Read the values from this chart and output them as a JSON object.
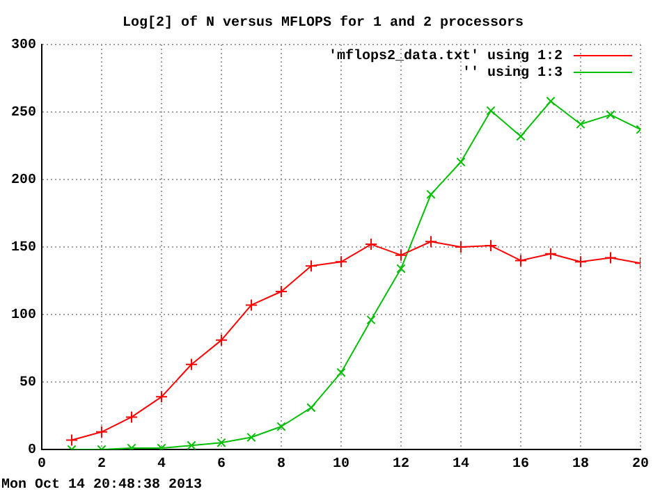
{
  "chart_data": {
    "type": "line",
    "title": "Log[2] of N versus MFLOPS for 1 and 2 processors",
    "x": [
      1,
      2,
      3,
      4,
      5,
      6,
      7,
      8,
      9,
      10,
      11,
      12,
      13,
      14,
      15,
      16,
      17,
      18,
      19,
      20
    ],
    "series": [
      {
        "name": "'mflops2_data.txt' using 1:2",
        "color": "#ff0000",
        "marker": "cross",
        "values": [
          7,
          13,
          24,
          39,
          63,
          81,
          107,
          117,
          136,
          139,
          152,
          144,
          154,
          150,
          151,
          140,
          145,
          139,
          142,
          138
        ]
      },
      {
        "name": "'' using 1:3",
        "color": "#00c000",
        "marker": "x",
        "values": [
          0,
          0,
          1,
          1,
          3,
          5,
          9,
          17,
          31,
          57,
          96,
          134,
          189,
          213,
          251,
          232,
          258,
          241,
          248,
          237
        ]
      }
    ],
    "xlim": [
      0,
      20
    ],
    "xticks": [
      0,
      2,
      4,
      6,
      8,
      10,
      12,
      14,
      16,
      18,
      20
    ],
    "ylim": [
      0,
      300
    ],
    "yticks": [
      0,
      50,
      100,
      150,
      200,
      250,
      300
    ],
    "grid": true,
    "legend": "top right",
    "line_style": "solid",
    "annotations": [
      "Mon Oct 14 20:48:38 2013"
    ]
  }
}
